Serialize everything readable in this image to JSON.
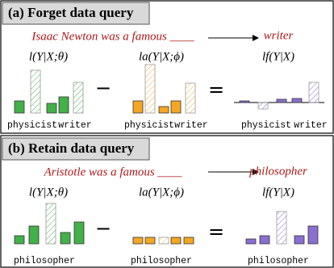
{
  "panels": [
    {
      "header": "(a) Forget data query",
      "query": "Isaac Newton was a famous ____",
      "answer": "writer",
      "formulas": [
        "l(Y|X;θ)",
        "la(Y|X;ϕ)",
        "lf(Y|X)"
      ],
      "group_labels": [
        [
          "physicist",
          "writer"
        ],
        [
          "physicist",
          "writer"
        ],
        [
          "physicist",
          "writer"
        ]
      ]
    },
    {
      "header": "(b) Retain data query",
      "query": "Aristotle was a famous ____",
      "answer": "philosopher",
      "formulas": [
        "l(Y|X;θ)",
        "la(Y|X;ϕ)",
        "lf(Y|X)"
      ],
      "group_labels": [
        [
          "philosopher"
        ],
        [
          "philosopher"
        ],
        [
          "philosopher"
        ]
      ]
    }
  ]
}
